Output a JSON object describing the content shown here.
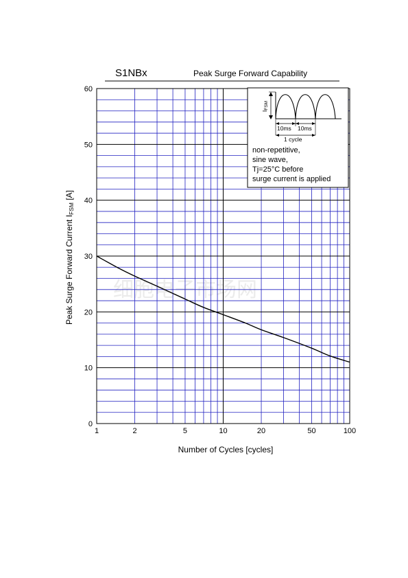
{
  "header": {
    "part_number": "S1NBx",
    "title": "Peak Surge Forward Capability"
  },
  "watermark": "细胞电子市场网",
  "chart_data": {
    "type": "line",
    "title": "Peak Surge Forward Capability",
    "xlabel": "Number of Cycles  [cycles]",
    "ylabel_main": "Peak Surge Forward Current  I",
    "ylabel_sub": "FSM",
    "ylabel_unit": " [A]",
    "xscale": "log",
    "xlim": [
      1,
      100
    ],
    "ylim": [
      0,
      60
    ],
    "x_ticks": [
      1,
      2,
      5,
      10,
      20,
      50,
      100
    ],
    "x_tick_labels": [
      "1",
      "2",
      "5",
      "10",
      "20",
      "50",
      "100"
    ],
    "y_ticks": [
      0,
      10,
      20,
      30,
      40,
      50,
      60
    ],
    "y_tick_labels": [
      "0",
      "10",
      "20",
      "30",
      "40",
      "50",
      "60"
    ],
    "grid": true,
    "series": [
      {
        "name": "",
        "x": [
          1,
          1.5,
          2,
          3,
          5,
          7,
          10,
          15,
          20,
          30,
          50,
          70,
          100
        ],
        "y": [
          30.0,
          27.8,
          26.4,
          24.6,
          22.3,
          20.8,
          19.5,
          18.0,
          16.8,
          15.4,
          13.5,
          12.1,
          11.0
        ]
      }
    ]
  },
  "inset": {
    "axis_label": "I",
    "axis_label_sub": "FSM",
    "dim1": "10ms",
    "dim2": "10ms",
    "cycle": "1 cycle",
    "notes": [
      "non-repetitive,",
      "sine wave,",
      "Tj=25°C before",
      "surge current is applied"
    ]
  },
  "colors": {
    "grid": "#2020c0",
    "curve": "#000000",
    "frame": "#000000"
  }
}
